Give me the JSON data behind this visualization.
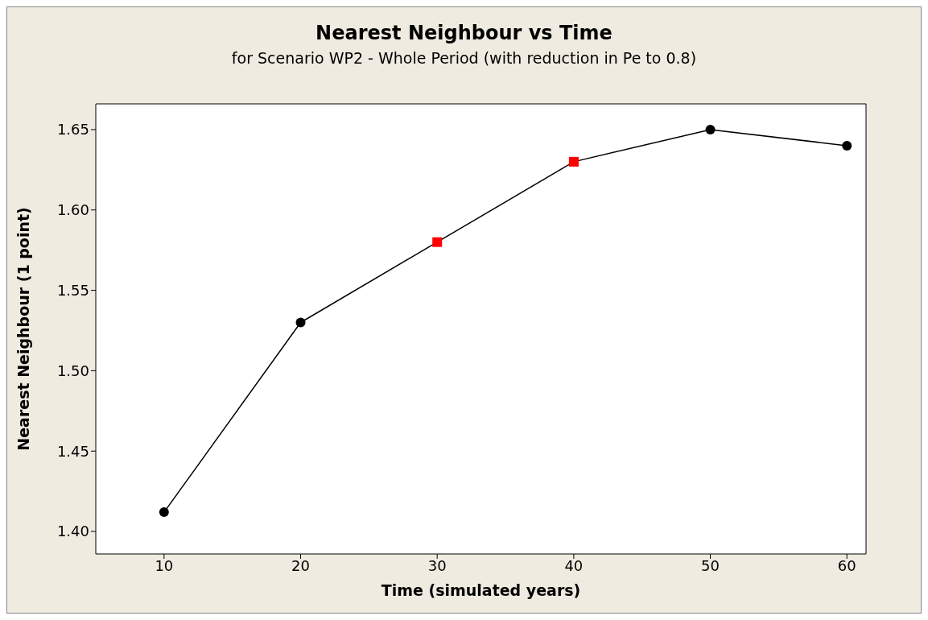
{
  "chart_data": {
    "type": "line",
    "title": "Nearest Neighbour vs Time",
    "subtitle": "for Scenario WP2 - Whole Period (with reduction in Pe to 0.8)",
    "xlabel": "Time (simulated years)",
    "ylabel": "Nearest Neighbour (1 point)",
    "series": [
      {
        "type": "scatter",
        "color": "#000000",
        "x": [
          10,
          20,
          50,
          60
        ],
        "values": [
          1.412,
          1.53,
          1.65,
          1.64
        ],
        "marker": "circle"
      },
      {
        "type": "scatter",
        "color": "#ff0000",
        "x": [
          30,
          40
        ],
        "values": [
          1.58,
          1.63
        ],
        "marker": "square"
      },
      {
        "type": "line",
        "color": "#000000",
        "x": [
          10,
          20,
          30,
          40,
          50,
          60
        ],
        "values": [
          1.412,
          1.53,
          1.58,
          1.63,
          1.65,
          1.64
        ],
        "marker": "none",
        "line_style": "solid"
      }
    ],
    "xlim": [
      5,
      61.4
    ],
    "xticks": [
      10,
      20,
      30,
      40,
      50,
      60
    ],
    "ylim": [
      1.386,
      1.666
    ],
    "yticks": [
      {
        "value": 1.4,
        "label": "1.40"
      },
      {
        "value": 1.45,
        "label": "1.45"
      },
      {
        "value": 1.5,
        "label": "1.50"
      },
      {
        "value": 1.55,
        "label": "1.55"
      },
      {
        "value": 1.6,
        "label": "1.60"
      },
      {
        "value": 1.65,
        "label": "1.65"
      }
    ],
    "grid": false,
    "legend": false
  }
}
